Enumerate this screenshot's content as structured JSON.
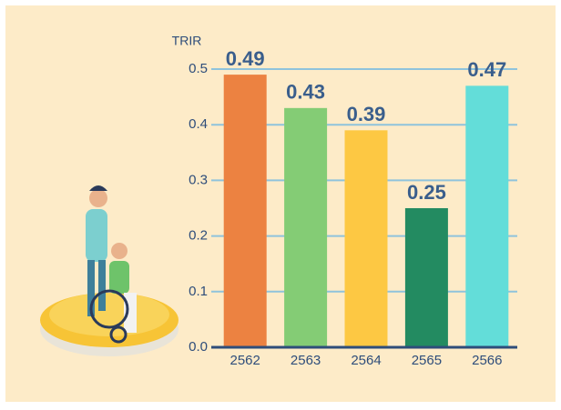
{
  "chart_data": {
    "type": "bar",
    "y_label": "TRIR",
    "categories": [
      "2562",
      "2563",
      "2564",
      "2565",
      "2566"
    ],
    "values": [
      0.49,
      0.43,
      0.39,
      0.25,
      0.47
    ],
    "colors": [
      "#ec8241",
      "#84cc75",
      "#fdc843",
      "#238b61",
      "#63ddd9"
    ],
    "ylim": [
      0,
      0.5
    ],
    "yticks": [
      {
        "value": 0,
        "label": "0.0"
      },
      0.1,
      0.2,
      0.3,
      0.4,
      0.5
    ],
    "grid": true
  }
}
